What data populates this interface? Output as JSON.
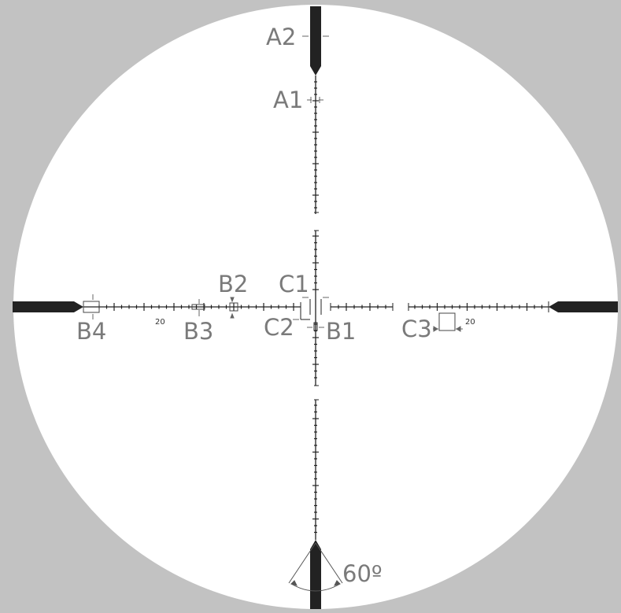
{
  "colors": {
    "background": "#c2c2c2",
    "field": "#ffffff",
    "ink": "#222222",
    "label": "#7a7a7a"
  },
  "labels": {
    "a2": "A2",
    "a1": "A1",
    "b1": "B1",
    "b2": "B2",
    "b3": "B3",
    "b4": "B4",
    "c1": "C1",
    "c2": "C2",
    "c3": "C3",
    "angle": "60º",
    "scale_left": "20",
    "scale_right": "20"
  }
}
